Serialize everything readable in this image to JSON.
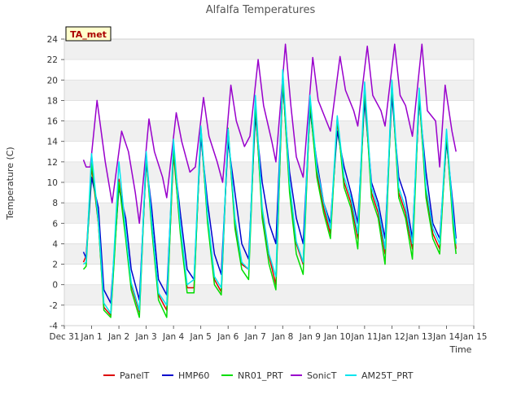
{
  "chart_data": {
    "type": "line",
    "title": "Alfalfa Temperatures",
    "xlabel": "Time",
    "ylabel": "Temperature (C)",
    "annotation": "TA_met",
    "xlim": [
      0,
      15
    ],
    "ylim": [
      -4,
      24
    ],
    "yticks": [
      -4,
      -2,
      0,
      2,
      4,
      6,
      8,
      10,
      12,
      14,
      16,
      18,
      20,
      22,
      24
    ],
    "xticks": [
      {
        "x": 0,
        "label": "Dec 31"
      },
      {
        "x": 1,
        "label": "Jan 1"
      },
      {
        "x": 2,
        "label": "Jan 2"
      },
      {
        "x": 3,
        "label": "Jan 3"
      },
      {
        "x": 4,
        "label": "Jan 4"
      },
      {
        "x": 5,
        "label": "Jan 5"
      },
      {
        "x": 6,
        "label": "Jan 6"
      },
      {
        "x": 7,
        "label": "Jan 7"
      },
      {
        "x": 8,
        "label": "Jan 8"
      },
      {
        "x": 9,
        "label": "Jan 9"
      },
      {
        "x": 10,
        "label": "Jan 10"
      },
      {
        "x": 11,
        "label": "Jan 11"
      },
      {
        "x": 12,
        "label": "Jan 12"
      },
      {
        "x": 13,
        "label": "Jan 13"
      },
      {
        "x": 14,
        "label": "Jan 14"
      },
      {
        "x": 15,
        "label": "Jan 15"
      }
    ],
    "grid": "horizontal bands",
    "legend_position": "bottom",
    "series": [
      {
        "name": "PanelT",
        "color": "#dd0000",
        "points": [
          [
            0.7,
            2.2
          ],
          [
            0.8,
            2.8
          ],
          [
            1.0,
            11.5
          ],
          [
            1.25,
            6.0
          ],
          [
            1.45,
            -2.2
          ],
          [
            1.7,
            -3.0
          ],
          [
            2.0,
            10.3
          ],
          [
            2.25,
            5.0
          ],
          [
            2.45,
            0.0
          ],
          [
            2.75,
            -2.7
          ],
          [
            3.0,
            12.5
          ],
          [
            3.2,
            6.0
          ],
          [
            3.45,
            -1.0
          ],
          [
            3.75,
            -2.5
          ],
          [
            4.0,
            12.8
          ],
          [
            4.25,
            5.5
          ],
          [
            4.5,
            -0.3
          ],
          [
            4.75,
            -0.3
          ],
          [
            5.0,
            15.0
          ],
          [
            5.25,
            6.5
          ],
          [
            5.5,
            0.5
          ],
          [
            5.75,
            -0.7
          ],
          [
            6.0,
            15.0
          ],
          [
            6.25,
            6.0
          ],
          [
            6.5,
            2.0
          ],
          [
            6.75,
            1.5
          ],
          [
            7.0,
            17.5
          ],
          [
            7.25,
            7.0
          ],
          [
            7.5,
            2.8
          ],
          [
            7.75,
            0.0
          ],
          [
            8.0,
            20.0
          ],
          [
            8.25,
            9.5
          ],
          [
            8.5,
            4.0
          ],
          [
            8.75,
            2.0
          ],
          [
            9.0,
            17.5
          ],
          [
            9.25,
            11.0
          ],
          [
            9.5,
            7.5
          ],
          [
            9.75,
            5.0
          ],
          [
            10.0,
            16.0
          ],
          [
            10.25,
            10.0
          ],
          [
            10.5,
            8.0
          ],
          [
            10.75,
            4.5
          ],
          [
            11.0,
            19.0
          ],
          [
            11.25,
            9.0
          ],
          [
            11.5,
            7.0
          ],
          [
            11.75,
            3.0
          ],
          [
            12.0,
            19.5
          ],
          [
            12.25,
            9.0
          ],
          [
            12.5,
            7.0
          ],
          [
            12.75,
            3.5
          ],
          [
            13.0,
            18.5
          ],
          [
            13.25,
            9.0
          ],
          [
            13.5,
            5.0
          ],
          [
            13.75,
            3.5
          ],
          [
            14.0,
            14.5
          ],
          [
            14.25,
            6.0
          ],
          [
            14.35,
            3.5
          ]
        ]
      },
      {
        "name": "HMP60",
        "color": "#0000cc",
        "points": [
          [
            0.7,
            3.2
          ],
          [
            0.8,
            2.6
          ],
          [
            1.0,
            10.5
          ],
          [
            1.25,
            7.5
          ],
          [
            1.45,
            -0.5
          ],
          [
            1.7,
            -1.8
          ],
          [
            2.0,
            9.5
          ],
          [
            2.25,
            6.5
          ],
          [
            2.45,
            1.5
          ],
          [
            2.75,
            -1.5
          ],
          [
            3.0,
            12.0
          ],
          [
            3.2,
            7.5
          ],
          [
            3.45,
            0.5
          ],
          [
            3.75,
            -1.0
          ],
          [
            4.0,
            13.0
          ],
          [
            4.25,
            7.0
          ],
          [
            4.5,
            1.5
          ],
          [
            4.75,
            0.5
          ],
          [
            5.0,
            14.5
          ],
          [
            5.25,
            8.0
          ],
          [
            5.5,
            3.0
          ],
          [
            5.75,
            1.0
          ],
          [
            6.0,
            14.0
          ],
          [
            6.25,
            9.0
          ],
          [
            6.5,
            4.0
          ],
          [
            6.75,
            2.5
          ],
          [
            7.0,
            16.5
          ],
          [
            7.25,
            10.0
          ],
          [
            7.5,
            6.0
          ],
          [
            7.75,
            4.0
          ],
          [
            8.0,
            19.5
          ],
          [
            8.25,
            11.0
          ],
          [
            8.5,
            6.5
          ],
          [
            8.75,
            4.0
          ],
          [
            9.0,
            17.0
          ],
          [
            9.25,
            12.0
          ],
          [
            9.5,
            8.0
          ],
          [
            9.75,
            6.0
          ],
          [
            10.0,
            15.0
          ],
          [
            10.25,
            11.5
          ],
          [
            10.5,
            9.0
          ],
          [
            10.75,
            6.0
          ],
          [
            11.0,
            18.0
          ],
          [
            11.25,
            10.0
          ],
          [
            11.5,
            8.0
          ],
          [
            11.75,
            4.5
          ],
          [
            12.0,
            18.5
          ],
          [
            12.25,
            10.5
          ],
          [
            12.5,
            8.5
          ],
          [
            12.75,
            4.5
          ],
          [
            13.0,
            18.0
          ],
          [
            13.25,
            11.0
          ],
          [
            13.5,
            6.0
          ],
          [
            13.75,
            4.5
          ],
          [
            14.0,
            14.0
          ],
          [
            14.25,
            7.5
          ],
          [
            14.35,
            4.5
          ]
        ]
      },
      {
        "name": "NR01_PRT",
        "color": "#00dd00",
        "points": [
          [
            0.7,
            1.5
          ],
          [
            0.8,
            1.8
          ],
          [
            1.0,
            12.0
          ],
          [
            1.25,
            6.0
          ],
          [
            1.45,
            -2.5
          ],
          [
            1.7,
            -3.2
          ],
          [
            2.0,
            10.0
          ],
          [
            2.25,
            4.5
          ],
          [
            2.45,
            -0.5
          ],
          [
            2.75,
            -3.2
          ],
          [
            3.0,
            12.7
          ],
          [
            3.2,
            5.5
          ],
          [
            3.45,
            -1.5
          ],
          [
            3.75,
            -3.2
          ],
          [
            4.0,
            13.3
          ],
          [
            4.25,
            5.0
          ],
          [
            4.5,
            -0.8
          ],
          [
            4.75,
            -0.8
          ],
          [
            5.0,
            15.5
          ],
          [
            5.25,
            6.0
          ],
          [
            5.5,
            0.0
          ],
          [
            5.75,
            -1.0
          ],
          [
            6.0,
            15.3
          ],
          [
            6.25,
            5.5
          ],
          [
            6.5,
            1.5
          ],
          [
            6.75,
            0.5
          ],
          [
            7.0,
            17.8
          ],
          [
            7.25,
            6.5
          ],
          [
            7.5,
            2.0
          ],
          [
            7.75,
            -0.5
          ],
          [
            8.0,
            20.3
          ],
          [
            8.25,
            9.0
          ],
          [
            8.5,
            3.0
          ],
          [
            8.75,
            1.0
          ],
          [
            9.0,
            17.8
          ],
          [
            9.25,
            10.5
          ],
          [
            9.5,
            7.0
          ],
          [
            9.75,
            4.5
          ],
          [
            10.0,
            16.3
          ],
          [
            10.25,
            9.5
          ],
          [
            10.5,
            7.5
          ],
          [
            10.75,
            3.5
          ],
          [
            11.0,
            19.3
          ],
          [
            11.25,
            8.5
          ],
          [
            11.5,
            6.5
          ],
          [
            11.75,
            2.0
          ],
          [
            12.0,
            19.8
          ],
          [
            12.25,
            8.5
          ],
          [
            12.5,
            6.5
          ],
          [
            12.75,
            2.5
          ],
          [
            13.0,
            18.8
          ],
          [
            13.25,
            8.5
          ],
          [
            13.5,
            4.5
          ],
          [
            13.75,
            3.0
          ],
          [
            14.0,
            14.8
          ],
          [
            14.25,
            5.5
          ],
          [
            14.35,
            3.0
          ]
        ]
      },
      {
        "name": "SonicT",
        "color": "#9900cc",
        "points": [
          [
            0.7,
            12.2
          ],
          [
            0.8,
            11.5
          ],
          [
            0.95,
            11.5
          ],
          [
            1.2,
            18.0
          ],
          [
            1.5,
            12.0
          ],
          [
            1.75,
            8.0
          ],
          [
            2.1,
            15.0
          ],
          [
            2.35,
            13.0
          ],
          [
            2.6,
            9.0
          ],
          [
            2.75,
            6.0
          ],
          [
            3.1,
            16.2
          ],
          [
            3.3,
            13.0
          ],
          [
            3.6,
            10.5
          ],
          [
            3.75,
            8.5
          ],
          [
            4.1,
            16.8
          ],
          [
            4.3,
            14.0
          ],
          [
            4.6,
            11.0
          ],
          [
            4.8,
            11.5
          ],
          [
            5.1,
            18.3
          ],
          [
            5.3,
            14.5
          ],
          [
            5.6,
            12.0
          ],
          [
            5.8,
            10.0
          ],
          [
            6.1,
            19.5
          ],
          [
            6.3,
            16.0
          ],
          [
            6.6,
            13.5
          ],
          [
            6.8,
            14.5
          ],
          [
            7.1,
            22.0
          ],
          [
            7.3,
            17.5
          ],
          [
            7.6,
            14.0
          ],
          [
            7.75,
            12.0
          ],
          [
            8.1,
            23.5
          ],
          [
            8.3,
            17.5
          ],
          [
            8.5,
            12.5
          ],
          [
            8.75,
            10.5
          ],
          [
            9.1,
            22.2
          ],
          [
            9.3,
            18.0
          ],
          [
            9.6,
            16.0
          ],
          [
            9.75,
            15.0
          ],
          [
            10.1,
            22.3
          ],
          [
            10.3,
            19.0
          ],
          [
            10.6,
            17.0
          ],
          [
            10.75,
            15.5
          ],
          [
            11.1,
            23.3
          ],
          [
            11.3,
            18.5
          ],
          [
            11.6,
            17.0
          ],
          [
            11.75,
            15.5
          ],
          [
            12.1,
            23.5
          ],
          [
            12.3,
            18.5
          ],
          [
            12.5,
            17.5
          ],
          [
            12.75,
            14.5
          ],
          [
            13.1,
            23.5
          ],
          [
            13.3,
            17.0
          ],
          [
            13.6,
            16.0
          ],
          [
            13.75,
            11.5
          ],
          [
            13.95,
            19.5
          ],
          [
            14.2,
            15.0
          ],
          [
            14.35,
            13.0
          ]
        ]
      },
      {
        "name": "AM25T_PRT",
        "color": "#00e5ee",
        "points": [
          [
            0.7,
            2.0
          ],
          [
            0.8,
            2.2
          ],
          [
            1.0,
            12.8
          ],
          [
            1.25,
            6.2
          ],
          [
            1.45,
            -1.8
          ],
          [
            1.7,
            -2.8
          ],
          [
            2.0,
            12.0
          ],
          [
            2.25,
            5.2
          ],
          [
            2.45,
            0.2
          ],
          [
            2.75,
            -2.5
          ],
          [
            3.0,
            13.0
          ],
          [
            3.2,
            6.2
          ],
          [
            3.45,
            -0.8
          ],
          [
            3.75,
            -2.0
          ],
          [
            4.0,
            14.2
          ],
          [
            4.25,
            5.8
          ],
          [
            4.5,
            0.0
          ],
          [
            4.75,
            0.5
          ],
          [
            5.0,
            15.5
          ],
          [
            5.25,
            6.8
          ],
          [
            5.5,
            0.8
          ],
          [
            5.75,
            -0.3
          ],
          [
            6.0,
            15.2
          ],
          [
            6.25,
            6.5
          ],
          [
            6.5,
            2.2
          ],
          [
            6.75,
            1.5
          ],
          [
            7.0,
            18.5
          ],
          [
            7.25,
            7.5
          ],
          [
            7.5,
            3.0
          ],
          [
            7.75,
            0.8
          ],
          [
            8.0,
            21.0
          ],
          [
            8.25,
            10.0
          ],
          [
            8.5,
            4.2
          ],
          [
            8.75,
            2.2
          ],
          [
            9.0,
            18.5
          ],
          [
            9.25,
            11.5
          ],
          [
            9.5,
            8.0
          ],
          [
            9.75,
            5.5
          ],
          [
            10.0,
            16.5
          ],
          [
            10.25,
            10.5
          ],
          [
            10.5,
            8.5
          ],
          [
            10.75,
            5.0
          ],
          [
            11.0,
            19.8
          ],
          [
            11.25,
            9.5
          ],
          [
            11.5,
            7.5
          ],
          [
            11.75,
            3.5
          ],
          [
            12.0,
            20.0
          ],
          [
            12.25,
            9.5
          ],
          [
            12.5,
            7.5
          ],
          [
            12.75,
            4.0
          ],
          [
            13.0,
            19.2
          ],
          [
            13.25,
            9.5
          ],
          [
            13.5,
            5.5
          ],
          [
            13.75,
            4.0
          ],
          [
            14.0,
            15.2
          ],
          [
            14.25,
            6.5
          ],
          [
            14.35,
            4.0
          ]
        ]
      }
    ]
  }
}
